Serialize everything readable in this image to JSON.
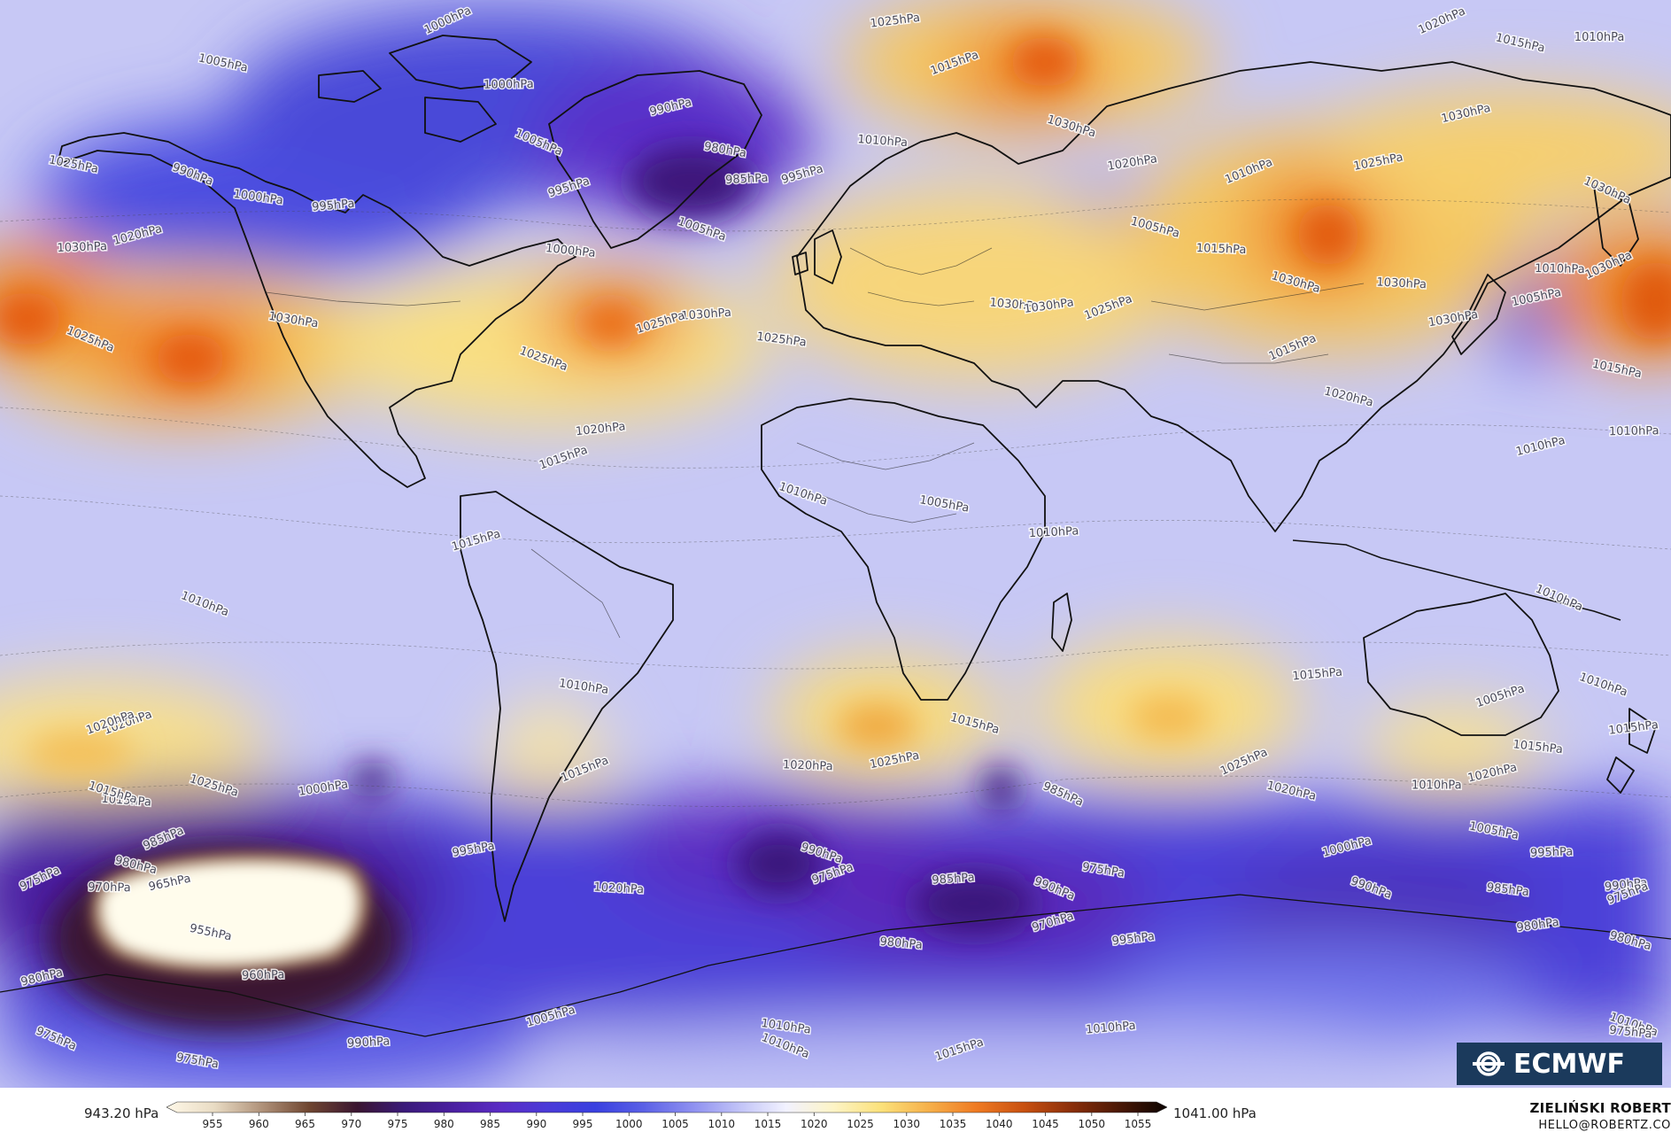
{
  "map": {
    "isobar_labels": [
      {
        "text": "1000hPa",
        "lon": -93,
        "lat": 79
      },
      {
        "text": "1005hPa",
        "lon": -145,
        "lat": 75
      },
      {
        "text": "1000hPa",
        "lon": -80,
        "lat": 71
      },
      {
        "text": "990hPa",
        "lon": -42,
        "lat": 67
      },
      {
        "text": "1005hPa",
        "lon": -73,
        "lat": 64
      },
      {
        "text": "980hPa",
        "lon": -30,
        "lat": 62
      },
      {
        "text": "985hPa",
        "lon": -25,
        "lat": 57
      },
      {
        "text": "995hPa",
        "lon": -12,
        "lat": 57
      },
      {
        "text": "990hPa",
        "lon": -151,
        "lat": 59
      },
      {
        "text": "1000hPa",
        "lon": -137,
        "lat": 55
      },
      {
        "text": "995hPa",
        "lon": -119,
        "lat": 53
      },
      {
        "text": "995hPa",
        "lon": -65,
        "lat": 55
      },
      {
        "text": "1005hPa",
        "lon": -36,
        "lat": 51
      },
      {
        "text": "1000hPa",
        "lon": -66,
        "lat": 47
      },
      {
        "text": "1025hPa",
        "lon": 8,
        "lat": 80
      },
      {
        "text": "1015hPa",
        "lon": 22,
        "lat": 73
      },
      {
        "text": "1030hPa",
        "lon": 48,
        "lat": 66
      },
      {
        "text": "1010hPa",
        "lon": 5,
        "lat": 63
      },
      {
        "text": "1020hPa",
        "lon": 62,
        "lat": 59
      },
      {
        "text": "1010hPa",
        "lon": 89,
        "lat": 57
      },
      {
        "text": "1005hPa",
        "lon": 67,
        "lat": 51
      },
      {
        "text": "1015hPa",
        "lon": 82,
        "lat": 47
      },
      {
        "text": "1025hPa",
        "lon": 118,
        "lat": 59
      },
      {
        "text": "1020hPa",
        "lon": 133,
        "lat": 79
      },
      {
        "text": "1015hPa",
        "lon": 150,
        "lat": 78
      },
      {
        "text": "1010hPa",
        "lon": 168,
        "lat": 78
      },
      {
        "text": "1030hPa",
        "lon": 138,
        "lat": 66
      },
      {
        "text": "1030hPa",
        "lon": 170,
        "lat": 57
      },
      {
        "text": "1025hPa",
        "lon": -179,
        "lat": 60
      },
      {
        "text": "1030hPa",
        "lon": -177,
        "lat": 47
      },
      {
        "text": "1020hPa",
        "lon": -164,
        "lat": 48
      },
      {
        "text": "1025hPa",
        "lon": -175,
        "lat": 35
      },
      {
        "text": "1030hPa",
        "lon": -129,
        "lat": 37
      },
      {
        "text": "1030hPa",
        "lon": -35,
        "lat": 37
      },
      {
        "text": "1025hPa",
        "lon": -45,
        "lat": 35
      },
      {
        "text": "1025hPa",
        "lon": -72,
        "lat": 32
      },
      {
        "text": "1025hPa",
        "lon": -18,
        "lat": 34
      },
      {
        "text": "1020hPa",
        "lon": -59,
        "lat": 20
      },
      {
        "text": "1015hPa",
        "lon": -67,
        "lat": 15
      },
      {
        "text": "1010hPa",
        "lon": -13,
        "lat": 12
      },
      {
        "text": "1030hPa",
        "lon": 35,
        "lat": 39
      },
      {
        "text": "1030hPa",
        "lon": 43,
        "lat": 38
      },
      {
        "text": "1025hPa",
        "lon": 57,
        "lat": 37
      },
      {
        "text": "1030hPa",
        "lon": 99,
        "lat": 43
      },
      {
        "text": "1030hPa",
        "lon": 123,
        "lat": 42
      },
      {
        "text": "1030hPa",
        "lon": 135,
        "lat": 36
      },
      {
        "text": "1015hPa",
        "lon": 99,
        "lat": 31
      },
      {
        "text": "1020hPa",
        "lon": 111,
        "lat": 26
      },
      {
        "text": "1010hPa",
        "lon": 159,
        "lat": 44
      },
      {
        "text": "1005hPa",
        "lon": 154,
        "lat": 39
      },
      {
        "text": "1030hPa",
        "lon": 171,
        "lat": 43
      },
      {
        "text": "1015hPa",
        "lon": 172,
        "lat": 30
      },
      {
        "text": "1010hPa",
        "lon": 177,
        "lat": 20
      },
      {
        "text": "1010hPa",
        "lon": 155,
        "lat": 17
      },
      {
        "text": "1010hPa",
        "lon": 159,
        "lat": -3
      },
      {
        "text": "1005hPa",
        "lon": 19,
        "lat": 10
      },
      {
        "text": "1010hPa",
        "lon": 44,
        "lat": 5
      },
      {
        "text": "1015hPa",
        "lon": -87,
        "lat": 3
      },
      {
        "text": "1010hPa",
        "lon": -149,
        "lat": -4
      },
      {
        "text": "1010hPa",
        "lon": -63,
        "lat": -17
      },
      {
        "text": "1015hPa",
        "lon": 104,
        "lat": -16
      },
      {
        "text": "1005hPa",
        "lon": 146,
        "lat": -20
      },
      {
        "text": "1010hPa",
        "lon": 169,
        "lat": -16
      },
      {
        "text": "1015hPa",
        "lon": 154,
        "lat": -26
      },
      {
        "text": "1015hPa",
        "lon": 180,
        "lat": -24
      },
      {
        "text": "1020hPa",
        "lon": -166,
        "lat": -24
      },
      {
        "text": "1025hPa",
        "lon": -147,
        "lat": -31
      },
      {
        "text": "1015hPa",
        "lon": -167,
        "lat": -34
      },
      {
        "text": "1000hPa",
        "lon": -122,
        "lat": -33
      },
      {
        "text": "1015hPa",
        "lon": -62,
        "lat": -31
      },
      {
        "text": "1015hPa",
        "lon": 26,
        "lat": -22
      },
      {
        "text": "1020hPa",
        "lon": -12,
        "lat": -29
      },
      {
        "text": "1025hPa",
        "lon": 8,
        "lat": -29
      },
      {
        "text": "1025hPa",
        "lon": 88,
        "lat": -30
      },
      {
        "text": "1020hPa",
        "lon": 98,
        "lat": -32
      },
      {
        "text": "1010hPa",
        "lon": 131,
        "lat": -32
      },
      {
        "text": "1020hPa",
        "lon": 144,
        "lat": -31
      },
      {
        "text": "985hPa",
        "lon": 47,
        "lat": -32
      },
      {
        "text": "1005hPa",
        "lon": 144,
        "lat": -38
      },
      {
        "text": "995hPa",
        "lon": 158,
        "lat": -42
      },
      {
        "text": "1000hPa",
        "lon": 111,
        "lat": -42
      },
      {
        "text": "990hPa",
        "lon": 45,
        "lat": -46
      },
      {
        "text": "975hPa",
        "lon": 56,
        "lat": -44
      },
      {
        "text": "985hPa",
        "lon": 22,
        "lat": -46
      },
      {
        "text": "970hPa",
        "lon": 45,
        "lat": -53
      },
      {
        "text": "990hPa",
        "lon": 117,
        "lat": -46
      },
      {
        "text": "985hPa",
        "lon": 148,
        "lat": -47
      },
      {
        "text": "990hPa",
        "lon": 175,
        "lat": -47
      },
      {
        "text": "975hPa",
        "lon": -5,
        "lat": -46
      },
      {
        "text": "990hPa",
        "lon": -8,
        "lat": -41
      },
      {
        "text": "980hPa",
        "lon": 10,
        "lat": -55
      },
      {
        "text": "980hPa",
        "lon": 155,
        "lat": -53
      },
      {
        "text": "975hPa",
        "lon": 180,
        "lat": -49
      },
      {
        "text": "980hPa",
        "lon": 178,
        "lat": -54
      },
      {
        "text": "1020hPa",
        "lon": -55,
        "lat": -47
      },
      {
        "text": "995hPa",
        "lon": -87,
        "lat": -42
      },
      {
        "text": "985hPa",
        "lon": -157,
        "lat": -41
      },
      {
        "text": "980hPa",
        "lon": -164,
        "lat": -43
      },
      {
        "text": "970hPa",
        "lon": -170,
        "lat": -47
      },
      {
        "text": "965hPa",
        "lon": -156,
        "lat": -47
      },
      {
        "text": "975hPa",
        "lon": -185,
        "lat": -47
      },
      {
        "text": "955hPa",
        "lon": -147,
        "lat": -53
      },
      {
        "text": "960hPa",
        "lon": -135,
        "lat": -60
      },
      {
        "text": "980hPa",
        "lon": -185,
        "lat": -61
      },
      {
        "text": "975hPa",
        "lon": -182,
        "lat": -68
      },
      {
        "text": "975hPa",
        "lon": -150,
        "lat": -72
      },
      {
        "text": "990hPa",
        "lon": -111,
        "lat": -70
      },
      {
        "text": "1005hPa",
        "lon": -70,
        "lat": -67
      },
      {
        "text": "1010hPa",
        "lon": -17,
        "lat": -69
      },
      {
        "text": "1010hPa",
        "lon": -17,
        "lat": -67
      },
      {
        "text": "1010hPa",
        "lon": 57,
        "lat": -68
      },
      {
        "text": "1015hPa",
        "lon": 23,
        "lat": -72
      },
      {
        "text": "1010hPa",
        "lon": 178,
        "lat": -66
      },
      {
        "text": "975hPa",
        "lon": 182,
        "lat": -68
      },
      {
        "text": "995hPa",
        "lon": 63,
        "lat": -55
      },
      {
        "text": "1020hPa",
        "lon": -170,
        "lat": -24
      },
      {
        "text": "1015hPa",
        "lon": -170,
        "lat": -32
      }
    ]
  },
  "legend": {
    "min_label": "943.20 hPa",
    "max_label": "1041.00 hPa",
    "ticks": [
      "955",
      "960",
      "965",
      "970",
      "975",
      "980",
      "985",
      "990",
      "995",
      "1000",
      "1005",
      "1010",
      "1015",
      "1020",
      "1025",
      "1030",
      "1035",
      "1040",
      "1045",
      "1050",
      "1055"
    ],
    "colors": [
      "#fff8e8",
      "#e9dcc4",
      "#b0927a",
      "#6e4530",
      "#3a1530",
      "#3a1a7a",
      "#4a1fa0",
      "#5a2bc4",
      "#4a3ad8",
      "#3940e0",
      "#5a60e6",
      "#8c8ef0",
      "#c0c2f7",
      "#f2f2ff",
      "#fdf4c6",
      "#fbe17a",
      "#f6b04a",
      "#ef7a22",
      "#c85010",
      "#8a2e0a",
      "#4a1806",
      "#0c0400"
    ]
  },
  "logo": {
    "text": "ECMWF",
    "icon": "ecmwf-logo-icon",
    "bg": "#1b3a5c"
  },
  "author": {
    "name": "ZIELIŃSKI ROBERT",
    "email": "HELLO@ROBERTZ.CO"
  }
}
